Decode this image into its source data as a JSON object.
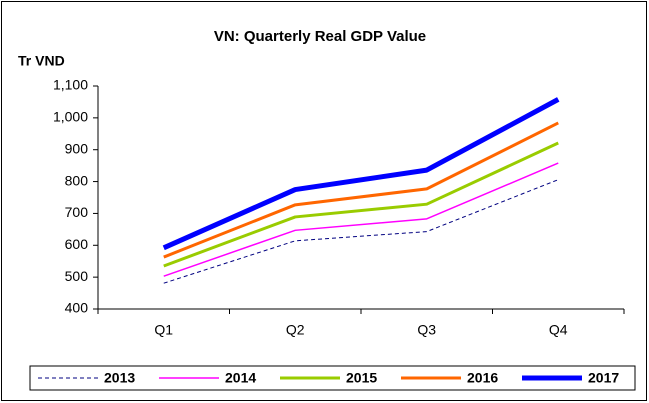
{
  "chart_data": {
    "type": "line",
    "title": "VN: Quarterly Real GDP Value",
    "y_label": "Tr VND",
    "categories": [
      "Q1",
      "Q2",
      "Q3",
      "Q4"
    ],
    "ylim": [
      400,
      1100
    ],
    "yticks": [
      400,
      500,
      600,
      700,
      800,
      900,
      {
        "value": 1000,
        "label": "1,000"
      },
      {
        "value": 1100,
        "label": "1,100"
      }
    ],
    "legend": "bottom",
    "series": [
      {
        "name": "2013",
        "color": "#000080",
        "width": 1,
        "dashed": true,
        "values": [
          481,
          614,
          643,
          806
        ]
      },
      {
        "name": "2014",
        "color": "#ff00ff",
        "width": 1.5,
        "dashed": false,
        "values": [
          503,
          647,
          683,
          858
        ]
      },
      {
        "name": "2015",
        "color": "#99cc00",
        "width": 3,
        "dashed": false,
        "values": [
          535,
          689,
          729,
          921
        ]
      },
      {
        "name": "2016",
        "color": "#ff6600",
        "width": 3,
        "dashed": false,
        "values": [
          563,
          727,
          777,
          984
        ]
      },
      {
        "name": "2017",
        "color": "#0000ff",
        "width": 5,
        "dashed": false,
        "values": [
          592,
          775,
          836,
          1058
        ]
      }
    ]
  }
}
